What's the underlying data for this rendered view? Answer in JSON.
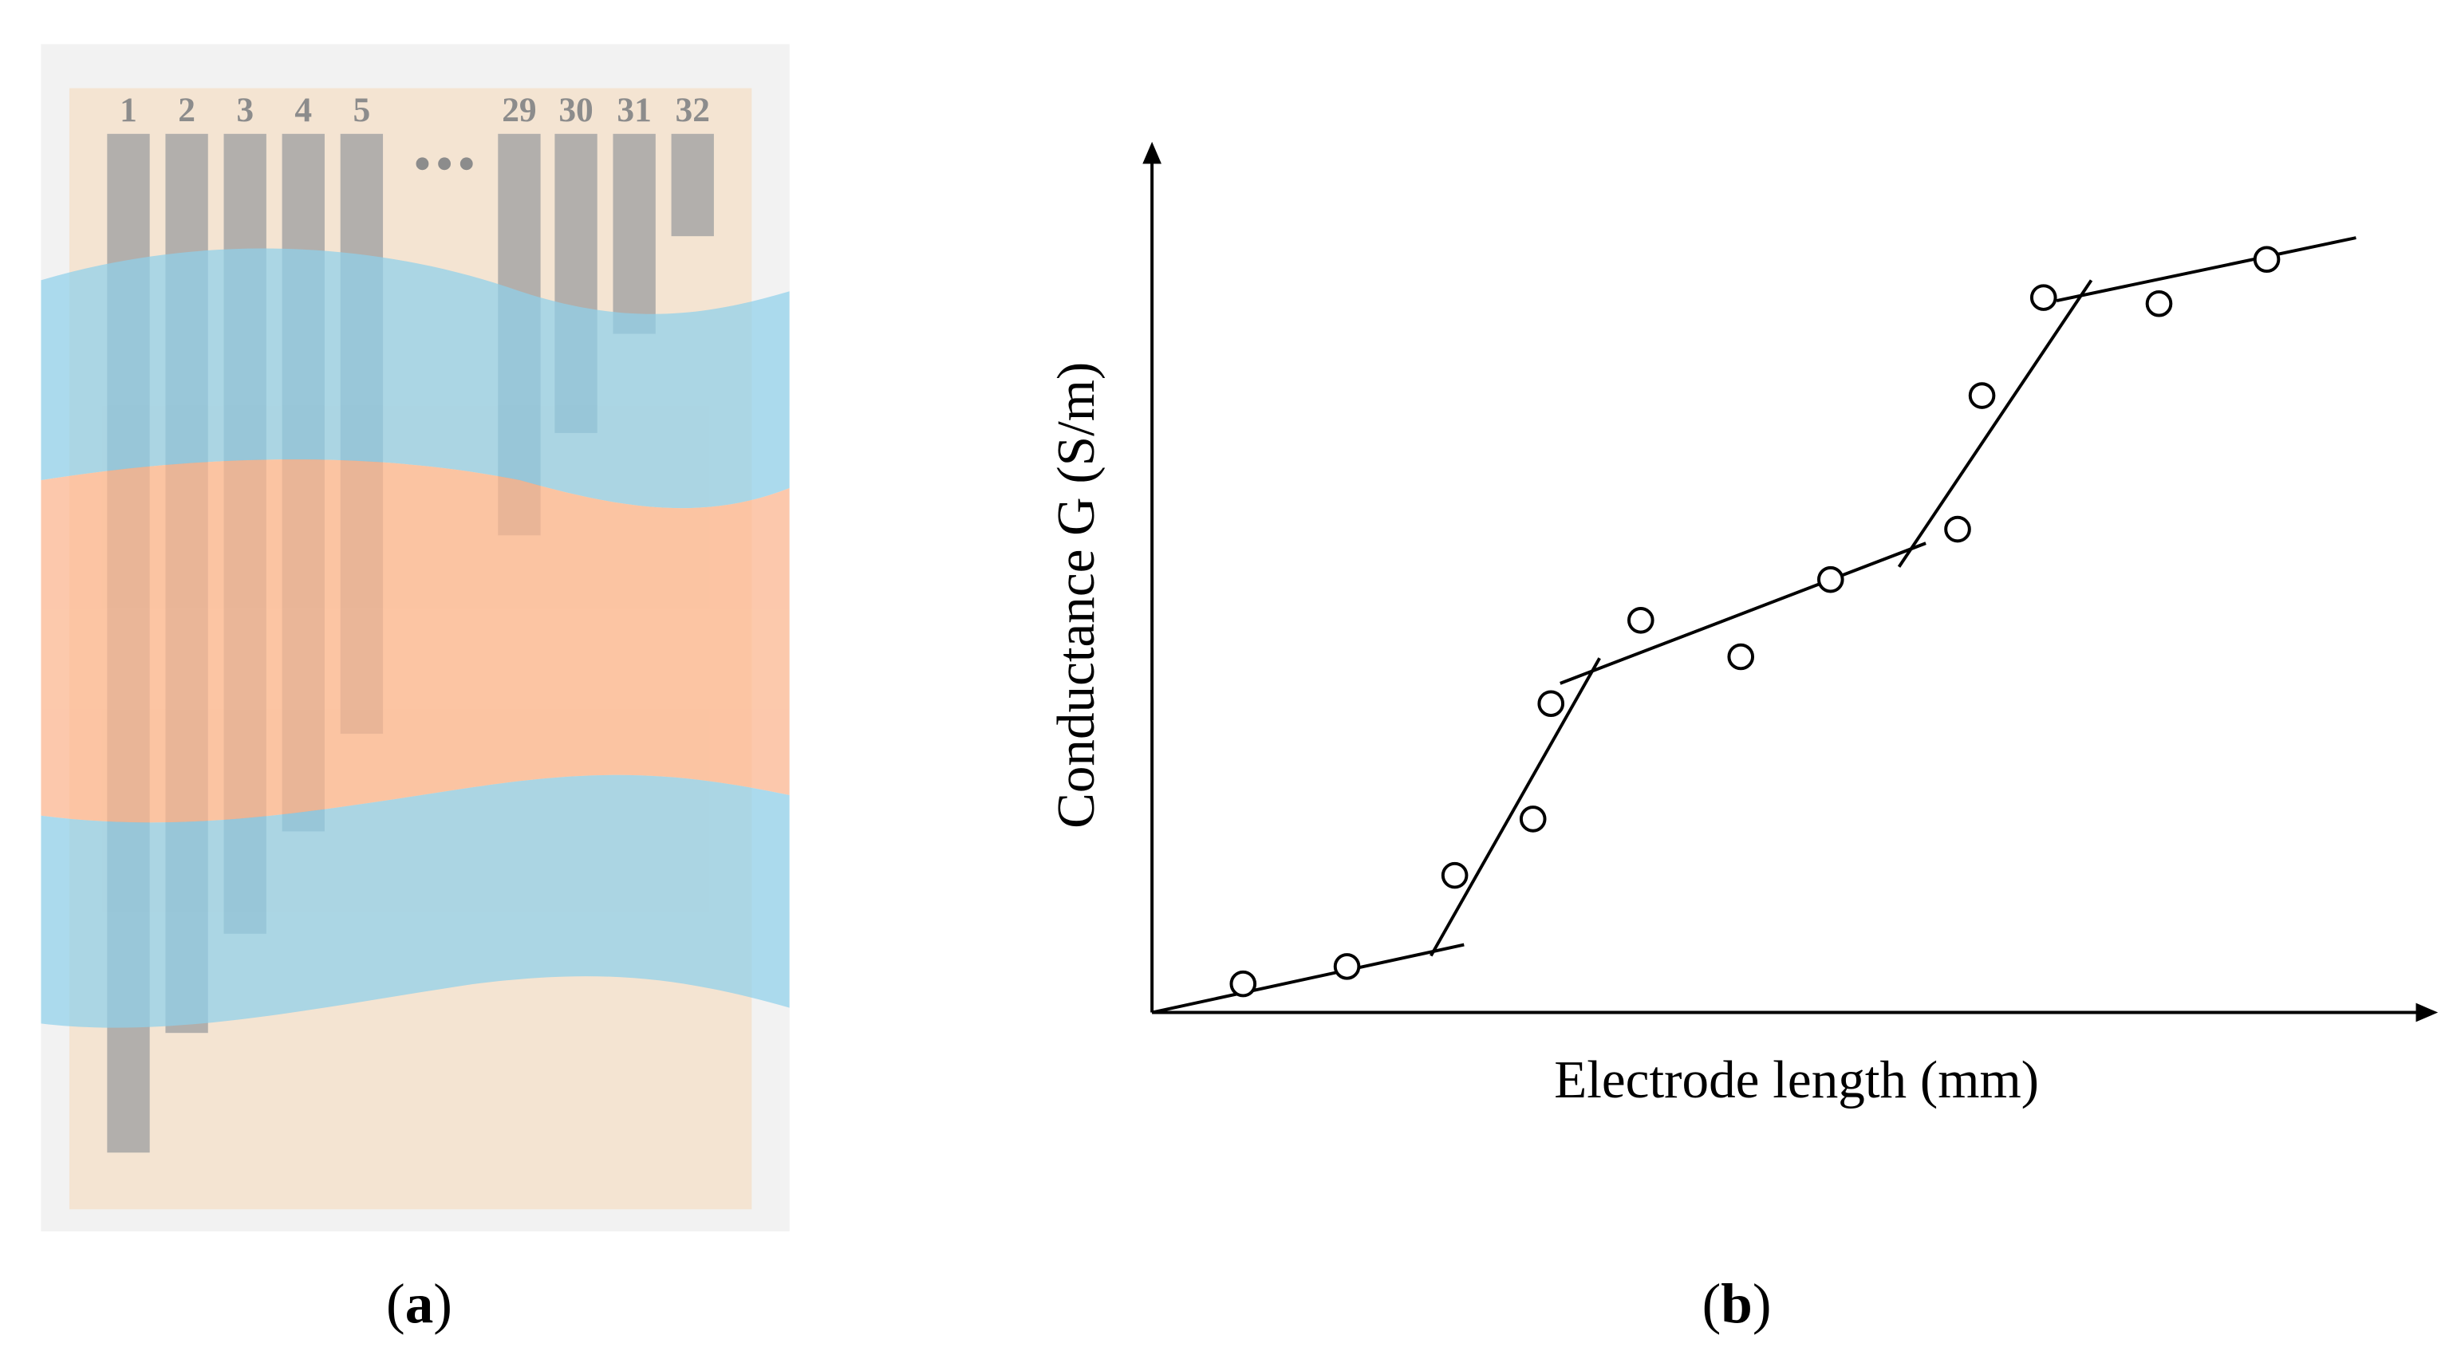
{
  "panel_a": {
    "caption": "(a)",
    "electrode_labels": [
      "1",
      "2",
      "3",
      "4",
      "5",
      "29",
      "30",
      "31",
      "32"
    ]
  },
  "panel_b": {
    "caption": "(b)",
    "chart_data": {
      "type": "scatter",
      "xlabel": "Electrode length (mm)",
      "ylabel": "Conductance G (S/m)",
      "xlim": [
        0,
        100
      ],
      "ylim": [
        0,
        100
      ],
      "x": [
        7.1,
        15.2,
        23.6,
        29.7,
        31.1,
        38.1,
        45.9,
        52.9,
        62.8,
        64.7,
        69.5,
        78.5,
        86.9
      ],
      "values": [
        3.3,
        5.3,
        15.8,
        22.3,
        35.6,
        45.2,
        41.0,
        49.9,
        55.7,
        71.1,
        82.4,
        81.7,
        86.8
      ]
    }
  }
}
